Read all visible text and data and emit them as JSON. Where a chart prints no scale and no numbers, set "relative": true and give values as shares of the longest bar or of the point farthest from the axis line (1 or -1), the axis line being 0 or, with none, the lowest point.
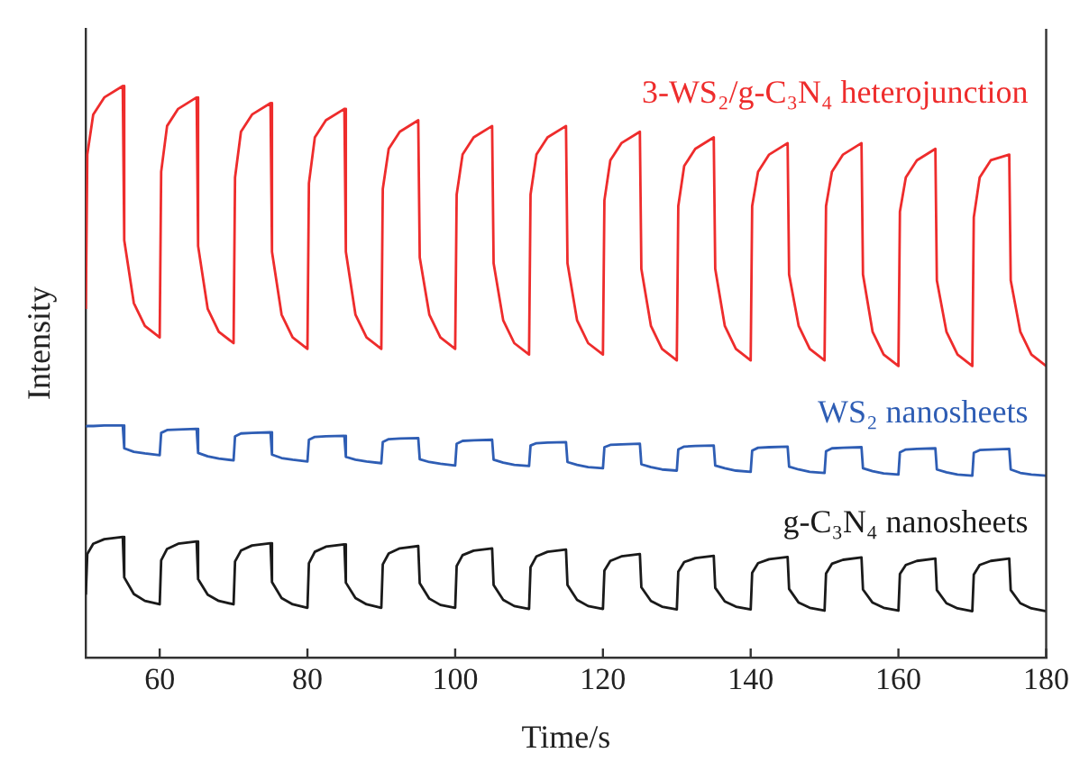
{
  "chart_data": {
    "type": "line",
    "xlabel": "Time/s",
    "ylabel": "Intensity",
    "relative": true,
    "legend": false,
    "grid": false,
    "marker": "none",
    "line_style": "solid",
    "xlim": [
      50,
      180
    ],
    "xticks": [
      60,
      80,
      100,
      120,
      140,
      160,
      180
    ],
    "x": [
      50,
      50.2,
      51,
      52.5,
      55,
      55.2,
      56.5,
      58,
      60,
      60.2,
      61,
      62.5,
      65,
      65.2,
      66.5,
      68,
      70,
      70.2,
      71,
      72.5,
      75,
      75.2,
      76.5,
      78,
      80,
      80.2,
      81,
      82.5,
      85,
      85.2,
      86.5,
      88,
      90,
      90.2,
      91,
      92.5,
      95,
      95.2,
      96.5,
      98,
      100,
      100.2,
      101,
      102.5,
      105,
      105.2,
      106.5,
      108,
      110,
      110.2,
      111,
      112.5,
      115,
      115.2,
      116.5,
      118,
      120,
      120.2,
      121,
      122.5,
      125,
      125.2,
      126.5,
      128,
      130,
      130.2,
      131,
      132.5,
      135,
      135.2,
      136.5,
      138,
      140,
      140.2,
      141,
      142.5,
      145,
      145.2,
      146.5,
      148,
      150,
      150.2,
      151,
      152.5,
      155,
      155.2,
      156.5,
      158,
      160,
      160.2,
      161,
      162.5,
      165,
      165.2,
      166.5,
      168,
      170,
      170.2,
      171,
      172.5,
      175,
      175.2,
      176.5,
      178,
      180
    ],
    "series": [
      {
        "name": "3-WS₂/g-C₃N₄ heterojunction",
        "color": "#ee2c2c",
        "values": [
          0.61,
          0.88,
          0.95,
          0.98,
          1.0,
          0.73,
          0.62,
          0.58,
          0.56,
          0.85,
          0.93,
          0.96,
          0.98,
          0.72,
          0.61,
          0.57,
          0.55,
          0.84,
          0.92,
          0.95,
          0.97,
          0.71,
          0.6,
          0.56,
          0.54,
          0.83,
          0.91,
          0.94,
          0.96,
          0.71,
          0.6,
          0.56,
          0.54,
          0.82,
          0.89,
          0.92,
          0.94,
          0.7,
          0.6,
          0.56,
          0.54,
          0.81,
          0.88,
          0.91,
          0.93,
          0.69,
          0.59,
          0.55,
          0.53,
          0.81,
          0.88,
          0.91,
          0.93,
          0.69,
          0.59,
          0.55,
          0.53,
          0.8,
          0.87,
          0.9,
          0.92,
          0.68,
          0.58,
          0.54,
          0.52,
          0.79,
          0.86,
          0.89,
          0.91,
          0.68,
          0.58,
          0.54,
          0.52,
          0.79,
          0.85,
          0.88,
          0.9,
          0.67,
          0.58,
          0.54,
          0.52,
          0.79,
          0.85,
          0.88,
          0.9,
          0.67,
          0.57,
          0.53,
          0.51,
          0.78,
          0.84,
          0.87,
          0.89,
          0.66,
          0.57,
          0.53,
          0.51,
          0.77,
          0.84,
          0.87,
          0.88,
          0.66,
          0.57,
          0.53,
          0.51
        ]
      },
      {
        "name": "WS₂ nanosheets",
        "color": "#2e5db4",
        "values": [
          0.404,
          0.405,
          0.405,
          0.406,
          0.406,
          0.366,
          0.36,
          0.357,
          0.354,
          0.393,
          0.398,
          0.399,
          0.4,
          0.358,
          0.352,
          0.348,
          0.345,
          0.387,
          0.392,
          0.393,
          0.394,
          0.355,
          0.349,
          0.346,
          0.343,
          0.381,
          0.386,
          0.387,
          0.388,
          0.351,
          0.346,
          0.343,
          0.34,
          0.377,
          0.382,
          0.383,
          0.384,
          0.347,
          0.342,
          0.339,
          0.336,
          0.374,
          0.379,
          0.38,
          0.381,
          0.346,
          0.341,
          0.337,
          0.335,
          0.371,
          0.375,
          0.376,
          0.377,
          0.342,
          0.337,
          0.333,
          0.331,
          0.368,
          0.372,
          0.373,
          0.374,
          0.338,
          0.333,
          0.329,
          0.327,
          0.364,
          0.369,
          0.37,
          0.371,
          0.336,
          0.331,
          0.327,
          0.325,
          0.362,
          0.367,
          0.368,
          0.369,
          0.334,
          0.329,
          0.325,
          0.323,
          0.361,
          0.366,
          0.367,
          0.368,
          0.331,
          0.326,
          0.322,
          0.32,
          0.359,
          0.364,
          0.365,
          0.366,
          0.329,
          0.324,
          0.32,
          0.318,
          0.358,
          0.363,
          0.364,
          0.365,
          0.329,
          0.323,
          0.32,
          0.318
        ]
      },
      {
        "name": "g-C₃N₄ nanosheets",
        "color": "#1a1a1a",
        "values": [
          0.11,
          0.181,
          0.199,
          0.207,
          0.211,
          0.14,
          0.111,
          0.099,
          0.093,
          0.17,
          0.19,
          0.199,
          0.203,
          0.137,
          0.11,
          0.099,
          0.093,
          0.168,
          0.187,
          0.196,
          0.2,
          0.132,
          0.104,
          0.093,
          0.087,
          0.165,
          0.185,
          0.194,
          0.198,
          0.131,
          0.104,
          0.093,
          0.087,
          0.163,
          0.182,
          0.191,
          0.195,
          0.13,
          0.103,
          0.092,
          0.087,
          0.16,
          0.179,
          0.187,
          0.191,
          0.127,
          0.101,
          0.09,
          0.085,
          0.158,
          0.177,
          0.185,
          0.189,
          0.127,
          0.101,
          0.09,
          0.085,
          0.152,
          0.169,
          0.177,
          0.181,
          0.123,
          0.099,
          0.089,
          0.084,
          0.15,
          0.167,
          0.174,
          0.178,
          0.122,
          0.098,
          0.089,
          0.084,
          0.148,
          0.165,
          0.172,
          0.176,
          0.12,
          0.096,
          0.087,
          0.082,
          0.147,
          0.164,
          0.171,
          0.175,
          0.119,
          0.096,
          0.087,
          0.082,
          0.146,
          0.162,
          0.169,
          0.173,
          0.118,
          0.095,
          0.086,
          0.081,
          0.145,
          0.162,
          0.169,
          0.173,
          0.118,
          0.095,
          0.086,
          0.081
        ]
      }
    ]
  }
}
